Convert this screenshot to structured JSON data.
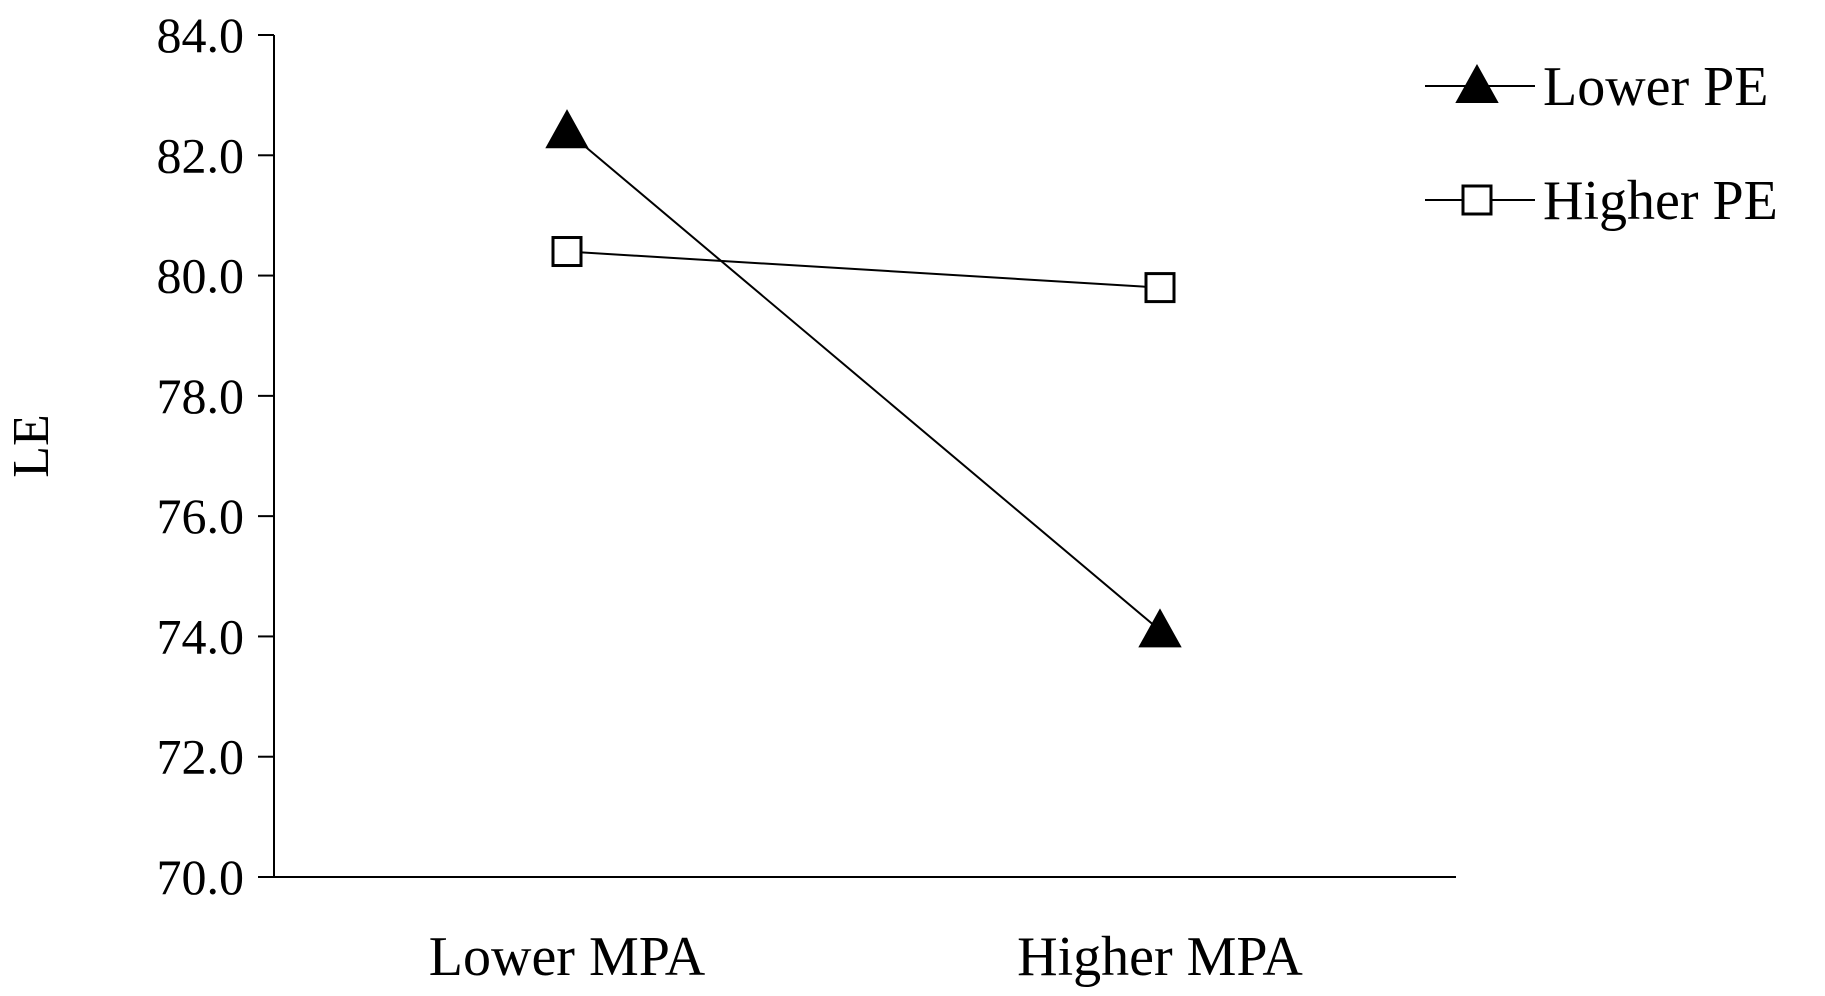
{
  "chart_data": {
    "type": "line",
    "categories": [
      "Lower MPA",
      "Higher MPA"
    ],
    "series": [
      {
        "name": "Lower PE",
        "values": [
          82.4,
          74.1
        ],
        "marker": "filled-triangle",
        "color": "#000000"
      },
      {
        "name": "Higher PE",
        "values": [
          80.4,
          79.8
        ],
        "marker": "open-square",
        "color": "#000000"
      }
    ],
    "xlabel": "",
    "ylabel": "LE",
    "ylim": [
      70.0,
      84.0
    ],
    "yticks": [
      "70.0",
      "72.0",
      "74.0",
      "76.0",
      "78.0",
      "80.0",
      "82.0",
      "84.0"
    ],
    "grid": false,
    "legend_position": "top-right"
  }
}
